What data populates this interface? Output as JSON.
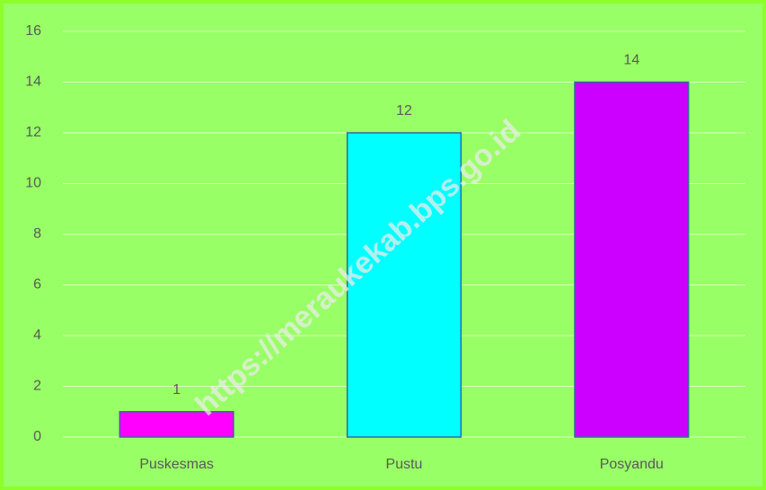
{
  "chart_data": {
    "type": "bar",
    "categories": [
      "Puskesmas",
      "Pustu",
      "Posyandu"
    ],
    "values": [
      1,
      12,
      14
    ],
    "colors": [
      "#ff00ff",
      "#00ffff",
      "#cc00ff"
    ],
    "ylim": [
      0,
      16
    ],
    "yticks": [
      0,
      2,
      4,
      6,
      8,
      10,
      12,
      14,
      16
    ],
    "grid": true,
    "data_labels": true,
    "watermark": "https://meraukekab.bps.go.id"
  }
}
